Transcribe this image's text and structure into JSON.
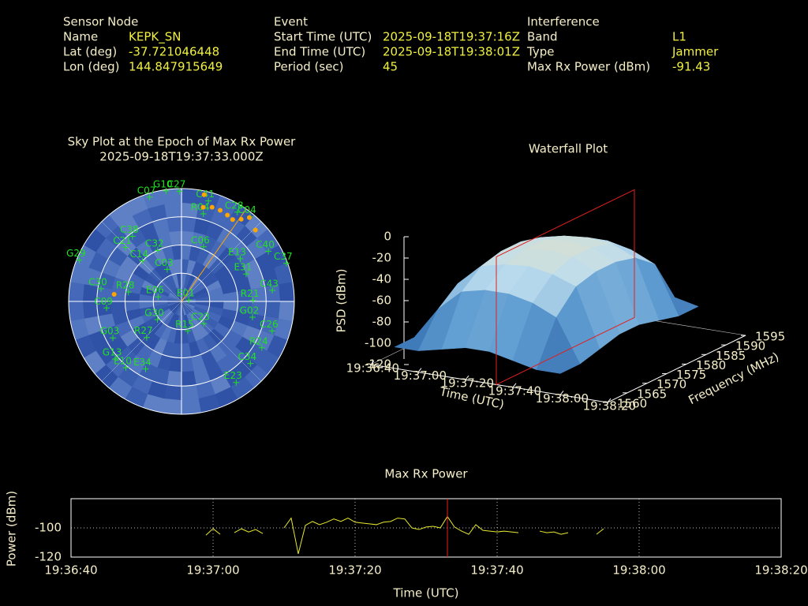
{
  "header": [
    {
      "title": "Sensor Node",
      "rows": [
        {
          "label": "Name",
          "value": "KEPK_SN"
        },
        {
          "label": "Lat (deg)",
          "value": "-37.721046448"
        },
        {
          "label": "Lon (deg)",
          "value": "144.847915649"
        }
      ]
    },
    {
      "title": "Event",
      "rows": [
        {
          "label": "Start Time (UTC)",
          "value": "2025-09-18T19:37:16Z"
        },
        {
          "label": "End Time (UTC)",
          "value": "2025-09-18T19:38:01Z"
        },
        {
          "label": "Period (sec)",
          "value": 45
        }
      ]
    },
    {
      "title": "Interference",
      "rows": [
        {
          "label": "Band",
          "value": "L1"
        },
        {
          "label": "Type",
          "value": "Jammer"
        },
        {
          "label": "Max Rx Power (dBm)",
          "value": -91.43
        }
      ]
    }
  ],
  "chart_data": [
    {
      "type": "polar_scatter",
      "title": "Sky Plot at the Epoch of Max Rx Power",
      "subtitle": "2025-09-18T19:37:33.000Z",
      "rlim": [
        90,
        0
      ],
      "satellites": {
        "color": "#22e022",
        "labels": [
          "C07",
          "G10",
          "C27",
          "C41",
          "R04",
          "C28",
          "C04",
          "C38",
          "C21",
          "C14",
          "C32",
          "C06",
          "E13",
          "C40",
          "C37",
          "E31",
          "C43",
          "C03",
          "E01",
          "R21",
          "G02",
          "C26",
          "R24",
          "C34",
          "E23",
          "C23",
          "R15",
          "R27",
          "E34",
          "E10",
          "G13",
          "G03",
          "C09",
          "G30",
          "E06",
          "R28",
          "C30",
          "G29"
        ],
        "az": [
          343,
          352,
          359,
          15,
          14,
          32,
          39,
          323,
          314,
          316,
          335,
          22,
          54,
          60,
          70,
          67,
          83,
          336,
          79,
          89,
          102.5,
          108,
          120,
          132,
          146,
          135,
          168,
          224,
          208,
          220,
          229,
          242,
          265,
          233,
          281,
          280,
          279,
          292
        ],
        "el": [
          3,
          1,
          2,
          7,
          18,
          6,
          3,
          25,
          28,
          45,
          45,
          43,
          32,
          10,
          1,
          34,
          17,
          62,
          84,
          33,
          32,
          14,
          16,
          16,
          12,
          65,
          66,
          50,
          29,
          21,
          20,
          28,
          30,
          66,
          71,
          47,
          25,
          2
        ]
      },
      "trail": {
        "color": "#ffa500",
        "az": [
          12,
          13,
          18,
          23,
          28,
          32,
          36,
          39,
          46,
          276
        ],
        "el": [
          3,
          13,
          11,
          11,
          12,
          13,
          9,
          4,
          8,
          36
        ]
      },
      "direction_az": 35,
      "direction_color": "#ffa500"
    },
    {
      "type": "surface",
      "title": "Waterfall Plot",
      "xlabel": "Time (UTC)",
      "ylabel": "Frequency (MHz)",
      "zlabel": "PSD (dBm)",
      "xlim": [
        "19:36:40",
        "19:38:20"
      ],
      "xticks": [
        "19:36:40",
        "19:37:00",
        "19:37:20",
        "19:37:40",
        "19:38:00",
        "19:38:20"
      ],
      "ylim": [
        1560,
        1595
      ],
      "yticks": [
        1560,
        1565,
        1570,
        1575,
        1580,
        1585,
        1590,
        1595
      ],
      "zlim": [
        -120,
        0
      ],
      "zticks": [
        0,
        -20,
        -40,
        -60,
        -80,
        -100,
        -120
      ],
      "x": [
        "19:36:50",
        "19:37:00",
        "19:37:10",
        "19:37:20",
        "19:37:30",
        "19:37:40",
        "19:37:50",
        "19:38:00"
      ],
      "y": [
        1560,
        1565,
        1570,
        1575,
        1580,
        1585,
        1590,
        1595
      ],
      "z": [
        [
          -100,
          -100,
          -95,
          -95,
          -95,
          -95,
          -100,
          -100
        ],
        [
          -100,
          -70,
          -55,
          -50,
          -50,
          -55,
          -70,
          -100
        ],
        [
          -95,
          -50,
          -35,
          -30,
          -30,
          -35,
          -50,
          -95
        ],
        [
          -90,
          -45,
          -30,
          -25,
          -25,
          -30,
          -45,
          -90
        ],
        [
          -90,
          -45,
          -28,
          -22,
          -22,
          -28,
          -40,
          -85
        ],
        [
          -95,
          -50,
          -32,
          -25,
          -25,
          -30,
          -45,
          -90
        ],
        [
          -100,
          -60,
          -40,
          -35,
          -35,
          -40,
          -55,
          -95
        ],
        [
          -100,
          -100,
          -95,
          -90,
          -90,
          -95,
          -100,
          -100
        ]
      ],
      "marker_x": "19:37:33",
      "marker_color": "#e02020"
    },
    {
      "type": "line",
      "title": "Max Rx Power",
      "xlabel": "Time (UTC)",
      "ylabel": "Power (dBm)",
      "color": "#e8e830",
      "xlim": [
        "19:36:40",
        "19:38:20"
      ],
      "xticks": [
        "19:36:40",
        "19:37:00",
        "19:37:20",
        "19:37:40",
        "19:38:00",
        "19:38:20"
      ],
      "ylim": [
        -120,
        -80
      ],
      "yticks": [
        -100,
        -120
      ],
      "grid": true,
      "x": [
        "19:36:59",
        "19:37:00",
        "19:37:01",
        "19:37:02",
        "19:37:03",
        "19:37:04",
        "19:37:05",
        "19:37:06",
        "19:37:07",
        "19:37:08",
        "19:37:09",
        "19:37:10",
        "19:37:11",
        "19:37:12",
        "19:37:13",
        "19:37:14",
        "19:37:15",
        "19:37:16",
        "19:37:17",
        "19:37:18",
        "19:37:19",
        "19:37:20",
        "19:37:21",
        "19:37:22",
        "19:37:23",
        "19:37:24",
        "19:37:25",
        "19:37:26",
        "19:37:27",
        "19:37:28",
        "19:37:29",
        "19:37:30",
        "19:37:31",
        "19:37:32",
        "19:37:33",
        "19:37:34",
        "19:37:35",
        "19:37:36",
        "19:37:37",
        "19:37:38",
        "19:37:39",
        "19:37:40",
        "19:37:41",
        "19:37:42",
        "19:37:43",
        "19:37:44",
        "19:37:45",
        "19:37:46",
        "19:37:47",
        "19:37:48",
        "19:37:49",
        "19:37:50",
        "19:37:51",
        "19:37:52",
        "19:37:53",
        "19:37:54",
        "19:37:55"
      ],
      "values": [
        -105,
        -100.5,
        -104.4,
        null,
        -103.3,
        -100.6,
        -102.8,
        -101.1,
        -103.9,
        null,
        null,
        -100,
        -93.3,
        -117.8,
        -98.3,
        -95.6,
        -97.8,
        -96.1,
        -93.9,
        -95.6,
        -93.3,
        -96.1,
        -96.7,
        -97.2,
        -97.8,
        -96.1,
        -95.6,
        -93.3,
        -93.9,
        -100,
        -101.1,
        -99.4,
        -98.9,
        -100,
        -92.2,
        -99.4,
        -102.2,
        -104.4,
        -97.8,
        -101.7,
        -102.2,
        -102.8,
        -102.2,
        -102.8,
        -103.3,
        null,
        null,
        -102.2,
        -103.3,
        -102.8,
        -104.4,
        -103.3,
        null,
        null,
        null,
        -104.4,
        -100.6
      ],
      "marker_x": "19:37:33",
      "marker_color": "#e02020"
    }
  ]
}
